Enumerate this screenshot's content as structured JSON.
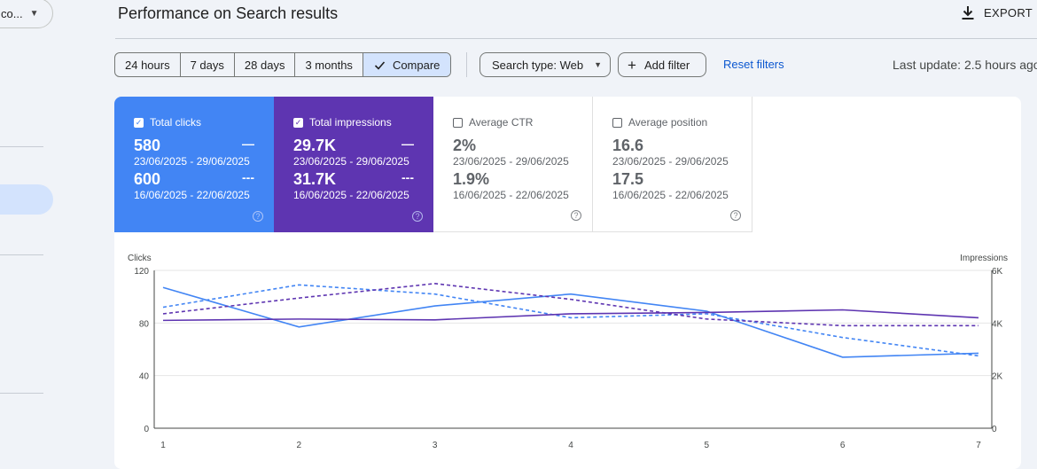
{
  "sidebar": {
    "property_label": "co...",
    "property_caret": "▼"
  },
  "header": {
    "title": "Performance on Search results",
    "export_label": "EXPORT"
  },
  "filters": {
    "ranges": [
      "24 hours",
      "7 days",
      "28 days",
      "3 months"
    ],
    "compare_label": "Compare",
    "search_type_label": "Search type: Web",
    "add_filter_label": "Add filter",
    "reset_label": "Reset filters",
    "last_update": "Last update: 2.5 hours ago"
  },
  "metrics": {
    "clicks": {
      "label": "Total clicks",
      "current": "580",
      "current_range": "23/06/2025 - 29/06/2025",
      "previous": "600",
      "previous_range": "16/06/2025 - 22/06/2025",
      "checked": true
    },
    "impressions": {
      "label": "Total impressions",
      "current": "29.7K",
      "current_range": "23/06/2025 - 29/06/2025",
      "previous": "31.7K",
      "previous_range": "16/06/2025 - 22/06/2025",
      "checked": true
    },
    "ctr": {
      "label": "Average CTR",
      "current": "2%",
      "current_range": "23/06/2025 - 29/06/2025",
      "previous": "1.9%",
      "previous_range": "16/06/2025 - 22/06/2025",
      "checked": false
    },
    "position": {
      "label": "Average position",
      "current": "16.6",
      "current_range": "23/06/2025 - 29/06/2025",
      "previous": "17.5",
      "previous_range": "16/06/2025 - 22/06/2025",
      "checked": false
    }
  },
  "colors": {
    "clicks": "#4285f4",
    "impressions": "#5e35b1",
    "grid": "#e6e6e6",
    "axis": "#444746"
  },
  "chart_data": {
    "type": "line",
    "x": [
      1,
      2,
      3,
      4,
      5,
      6,
      7
    ],
    "ylabel_left": "Clicks",
    "ylabel_right": "Impressions",
    "y_left_ticks": [
      "0",
      "40",
      "80",
      "120"
    ],
    "y_right_ticks": [
      "0",
      "2K",
      "4K",
      "6K"
    ],
    "ylim_left": [
      0,
      120
    ],
    "ylim_right": [
      0,
      6000
    ],
    "series": [
      {
        "key": "clicks_current",
        "axis": "left",
        "color": "#4285f4",
        "dashed": false,
        "values": [
          107,
          77,
          93,
          102,
          89,
          54,
          57
        ]
      },
      {
        "key": "clicks_previous",
        "axis": "left",
        "color": "#4285f4",
        "dashed": true,
        "values": [
          92,
          109,
          102,
          84,
          87,
          69,
          55
        ]
      },
      {
        "key": "impressions_current",
        "axis": "right",
        "color": "#5e35b1",
        "dashed": false,
        "values": [
          4100,
          4150,
          4120,
          4350,
          4400,
          4500,
          4200
        ]
      },
      {
        "key": "impressions_previous",
        "axis": "right",
        "color": "#5e35b1",
        "dashed": true,
        "values": [
          4350,
          4950,
          5500,
          4900,
          4150,
          3900,
          3900
        ]
      }
    ]
  }
}
